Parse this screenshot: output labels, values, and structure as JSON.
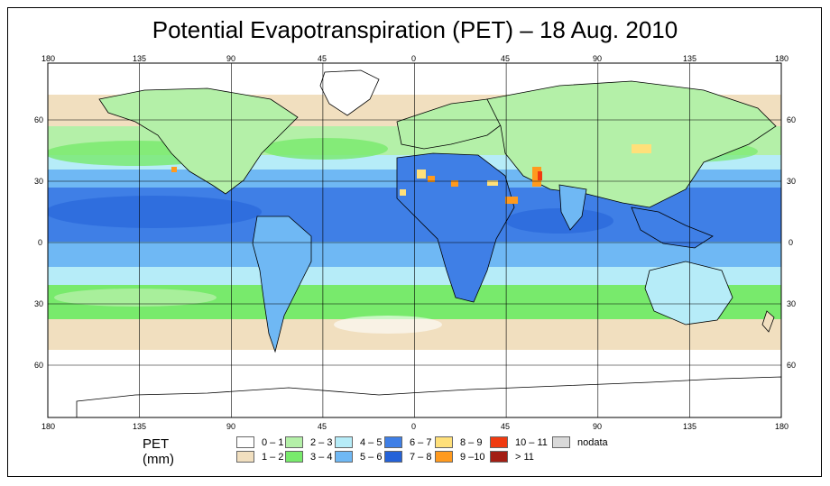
{
  "title": "Potential Evapotranspiration (PET) – 18 Aug. 2010",
  "axes": {
    "lon_ticks": [
      "180",
      "135",
      "90",
      "45",
      "0",
      "45",
      "90",
      "135",
      "180"
    ],
    "lat_ticks": [
      "60",
      "30",
      "0",
      "30",
      "60"
    ]
  },
  "legend": {
    "title": "PET (mm)",
    "items": [
      {
        "label": "0 – 1",
        "color": "#ffffff"
      },
      {
        "label": "1 – 2",
        "color": "#f1dfbf"
      },
      {
        "label": "2 – 3",
        "color": "#b4f0a8"
      },
      {
        "label": "3 – 4",
        "color": "#78ea6c"
      },
      {
        "label": "4 – 5",
        "color": "#b6ecf8"
      },
      {
        "label": "5 – 6",
        "color": "#6fb8f4"
      },
      {
        "label": "6 – 7",
        "color": "#3f7fe6"
      },
      {
        "label": "7 – 8",
        "color": "#2462d8"
      },
      {
        "label": "8 – 9",
        "color": "#ffe07a"
      },
      {
        "label": "9 –10",
        "color": "#ff9a1e"
      },
      {
        "label": "10 – 11",
        "color": "#f03a10"
      },
      {
        "label": "> 11",
        "color": "#a31e14"
      },
      {
        "label": "nodata",
        "color": "#d9d9d9"
      }
    ]
  }
}
